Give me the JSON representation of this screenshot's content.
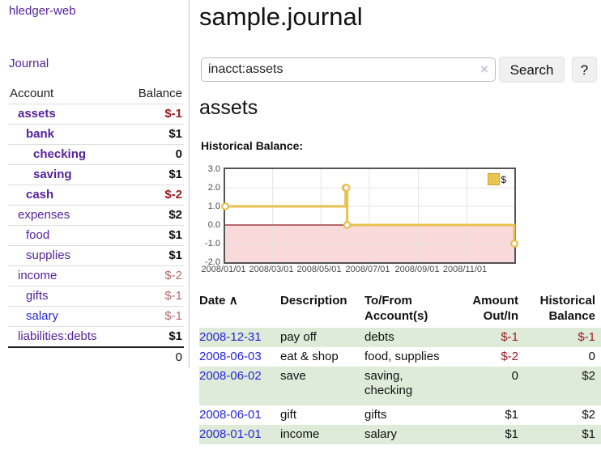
{
  "app": {
    "title": "hledger-web"
  },
  "sidebar": {
    "journal_link": "Journal",
    "header": {
      "account": "Account",
      "balance": "Balance"
    },
    "accounts": [
      {
        "name": "assets",
        "balance": "$-1"
      },
      {
        "name": "bank",
        "balance": "$1"
      },
      {
        "name": "checking",
        "balance": "0"
      },
      {
        "name": "saving",
        "balance": "$1"
      },
      {
        "name": "cash",
        "balance": "$-2"
      },
      {
        "name": "expenses",
        "balance": "$2"
      },
      {
        "name": "food",
        "balance": "$1"
      },
      {
        "name": "supplies",
        "balance": "$1"
      },
      {
        "name": "income",
        "balance": "$-2"
      },
      {
        "name": "gifts",
        "balance": "$-1"
      },
      {
        "name": "salary",
        "balance": "$-1"
      },
      {
        "name": "liabilities:debts",
        "balance": "$1"
      }
    ],
    "total": "0"
  },
  "main": {
    "title": "sample.journal",
    "search": {
      "value": "inacct:assets",
      "clear_icon": "×",
      "button_label": "Search",
      "help_label": "?"
    },
    "account_heading": "assets",
    "chart_label": "Historical Balance:"
  },
  "chart_data": {
    "type": "line",
    "title": "Historical Balance",
    "x_range": [
      "2008-01-01",
      "2008-12-31"
    ],
    "ylim": [
      -2,
      3
    ],
    "y_ticks": [
      "3.0",
      "2.0",
      "1.0",
      "0.0",
      "-1.0",
      "-2.0"
    ],
    "x_ticks": [
      "2008/01/01",
      "2008/03/01",
      "2008/05/01",
      "2008/07/01",
      "2008/09/01",
      "2008/11/01"
    ],
    "series": [
      {
        "name": "$",
        "step": true,
        "points": [
          [
            "2008-01-01",
            1
          ],
          [
            "2008-06-01",
            2
          ],
          [
            "2008-06-02",
            2
          ],
          [
            "2008-06-03",
            0
          ],
          [
            "2008-12-31",
            -1
          ]
        ]
      }
    ],
    "legend": {
      "label": "$",
      "position": "top-right"
    },
    "colors": {
      "line": "#e8c04f",
      "negative_region": "#f9d9d9",
      "zero_line": "#8b1d1d",
      "grid": "#e4e4e4",
      "border": "#545454"
    }
  },
  "register": {
    "headers": {
      "date": "Date",
      "sort_indicator": "∧",
      "description": "Description",
      "accounts": "To/From Account(s)",
      "amount": "Amount Out/In",
      "balance": "Historical Balance"
    },
    "rows": [
      {
        "date": "2008-12-31",
        "description": "pay off",
        "accounts": "debts",
        "amount": "$-1",
        "balance": "$-1"
      },
      {
        "date": "2008-06-03",
        "description": "eat & shop",
        "accounts": "food, supplies",
        "amount": "$-2",
        "balance": "0"
      },
      {
        "date": "2008-06-02",
        "description": "save",
        "accounts": "saving, checking",
        "amount": "0",
        "balance": "$2"
      },
      {
        "date": "2008-06-01",
        "description": "gift",
        "accounts": "gifts",
        "amount": "$1",
        "balance": "$2"
      },
      {
        "date": "2008-01-01",
        "description": "income",
        "accounts": "salary",
        "amount": "$1",
        "balance": "$1"
      }
    ]
  },
  "colors": {
    "link_purple": "#55229b",
    "link_blue": "#2626d8",
    "negative_strong": "#9b1c20",
    "negative_soft": "#b46a70",
    "row_stripe_green": "#ddebd8"
  }
}
